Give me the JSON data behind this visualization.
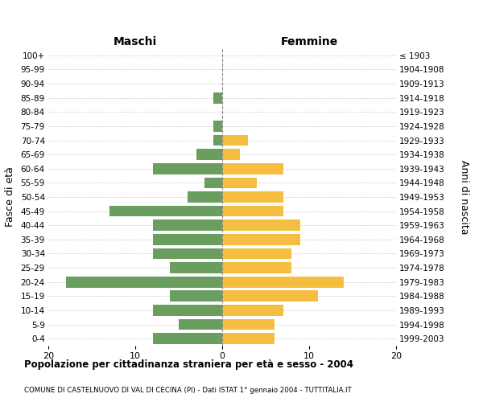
{
  "age_groups": [
    "100+",
    "95-99",
    "90-94",
    "85-89",
    "80-84",
    "75-79",
    "70-74",
    "65-69",
    "60-64",
    "55-59",
    "50-54",
    "45-49",
    "40-44",
    "35-39",
    "30-34",
    "25-29",
    "20-24",
    "15-19",
    "10-14",
    "5-9",
    "0-4"
  ],
  "birth_years": [
    "≤ 1903",
    "1904-1908",
    "1909-1913",
    "1914-1918",
    "1919-1923",
    "1924-1928",
    "1929-1933",
    "1934-1938",
    "1939-1943",
    "1944-1948",
    "1949-1953",
    "1954-1958",
    "1959-1963",
    "1964-1968",
    "1969-1973",
    "1974-1978",
    "1979-1983",
    "1984-1988",
    "1989-1993",
    "1994-1998",
    "1999-2003"
  ],
  "maschi": [
    0,
    0,
    0,
    1,
    0,
    1,
    1,
    3,
    8,
    2,
    4,
    13,
    8,
    8,
    8,
    6,
    18,
    6,
    8,
    5,
    8
  ],
  "femmine": [
    0,
    0,
    0,
    0,
    0,
    0,
    3,
    2,
    7,
    4,
    7,
    7,
    9,
    9,
    8,
    8,
    14,
    11,
    7,
    6,
    6
  ],
  "color_maschi": "#6a9e5e",
  "color_femmine": "#f5be41",
  "title_main": "Popolazione per cittadinanza straniera per età e sesso - 2004",
  "title_sub": "COMUNE DI CASTELNUOVO DI VAL DI CECINA (PI) - Dati ISTAT 1° gennaio 2004 - TUTTITALIA.IT",
  "ylabel_left": "Fasce di età",
  "ylabel_right": "Anni di nascita",
  "label_maschi": "Maschi",
  "label_femmine": "Femmine",
  "xlim": 20,
  "background_color": "#ffffff",
  "grid_color": "#cccccc"
}
